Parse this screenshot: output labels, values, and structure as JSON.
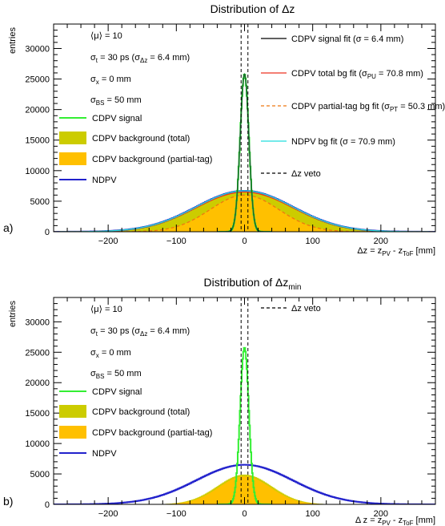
{
  "chart_data": [
    {
      "panel_label": "a)",
      "type": "area",
      "title": "Distribution of Δz",
      "title_main": "Distribution of ",
      "title_sym": "Δz",
      "title_sub": "",
      "xlabel": "Δz = z_PV - z_ToF [mm]",
      "xlabel_parts": {
        "pre": "Δz = z",
        "sub1": "PV",
        "mid": " - z",
        "sub2": "ToF",
        "post": " [mm]"
      },
      "ylabel": "entries",
      "xlim": [
        -280,
        280
      ],
      "ylim": [
        0,
        34000
      ],
      "xticks": [
        -200,
        -100,
        0,
        100,
        200
      ],
      "yticks": [
        5000,
        10000,
        15000,
        20000,
        25000,
        30000
      ],
      "veto": [
        -5,
        5
      ],
      "info": [
        {
          "text": "⟨μ⟩ = 10"
        },
        {
          "pre": "σ",
          "sub": "t",
          "post": " = 30 ps (σ",
          "sub2": "Δz",
          "post2": " =  6.4 mm)"
        },
        {
          "pre": "σ",
          "sub": "x",
          "post": " = 0 mm"
        },
        {
          "pre": "σ",
          "sub": "BS",
          "post": " =   50 mm"
        }
      ],
      "legend_left": [
        {
          "label": "CDPV signal",
          "color": "#33ee33",
          "kind": "line"
        },
        {
          "label": "CDPV background (total)",
          "color": "#cccc00",
          "kind": "fill"
        },
        {
          "label": "CDPV background (partial-tag)",
          "color": "#ffc000",
          "kind": "fill"
        },
        {
          "label": "NDPV",
          "color": "#2222cc",
          "kind": "line"
        }
      ],
      "legend_right": [
        {
          "pre": "CDPV signal fit (σ =  6.4 mm)",
          "color": "#000000",
          "dash": false
        },
        {
          "pre": "CDPV total bg fit (σ",
          "sub": "PU",
          "post": " = 70.8 mm)",
          "color": "#ee3322",
          "dash": false
        },
        {
          "pre": "CDPV partial-tag bg fit (σ",
          "sub": "PT",
          "post": " = 50.3 mm)",
          "color": "#ee7711",
          "dash": true
        },
        {
          "pre": "NDPV bg fit (σ = 70.9 mm)",
          "color": "#22dddd",
          "dash": false
        },
        {
          "pre": "Δz veto",
          "color": "#000000",
          "dash": true
        }
      ],
      "series": [
        {
          "name": "CDPV signal",
          "kind": "gauss",
          "amp": 25800,
          "mu": 0,
          "sigma": 6.4,
          "color": "#33ee33"
        },
        {
          "name": "CDPV background (total)",
          "kind": "gauss",
          "amp": 6500,
          "mu": 0,
          "sigma": 70.8,
          "color": "#cccc00"
        },
        {
          "name": "CDPV background (partial-tag)",
          "kind": "gauss",
          "amp": 6000,
          "mu": 0,
          "sigma": 50.3,
          "color": "#ffc000"
        },
        {
          "name": "NDPV",
          "kind": "gauss",
          "amp": 6700,
          "mu": 0,
          "sigma": 70.9,
          "color": "#2222cc"
        }
      ],
      "fits": [
        {
          "name": "CDPV signal fit",
          "amp": 25800,
          "mu": 0,
          "sigma": 6.4,
          "color": "#1a6b2e",
          "dash": false
        },
        {
          "name": "CDPV total bg fit",
          "amp": 6500,
          "mu": 0,
          "sigma": 70.8,
          "color": "#ee3322",
          "dash": false
        },
        {
          "name": "CDPV partial-tag bg fit",
          "amp": 6000,
          "mu": 0,
          "sigma": 50.3,
          "color": "#ee7711",
          "dash": true
        },
        {
          "name": "NDPV bg fit",
          "amp": 6700,
          "mu": 0,
          "sigma": 70.9,
          "color": "#22dddd",
          "dash": false
        }
      ]
    },
    {
      "panel_label": "b)",
      "type": "area",
      "title": "Distribution of Δz_min",
      "title_main": "Distribution of ",
      "title_sym": "Δz",
      "title_sub": "min",
      "xlabel": "Δ z = z_PV - z_ToF [mm]",
      "xlabel_parts": {
        "pre": "Δ z = z",
        "sub1": "PV",
        "mid": " - z",
        "sub2": "ToF",
        "post": " [mm]"
      },
      "ylabel": "entries",
      "xlim": [
        -280,
        280
      ],
      "ylim": [
        0,
        34000
      ],
      "xticks": [
        -200,
        -100,
        0,
        100,
        200
      ],
      "yticks": [
        5000,
        10000,
        15000,
        20000,
        25000,
        30000
      ],
      "veto": [
        -5,
        5
      ],
      "info": [
        {
          "text": "⟨μ⟩ = 10"
        },
        {
          "pre": "σ",
          "sub": "t",
          "post": " = 30 ps (σ",
          "sub2": "Δz",
          "post2": " =  6.4 mm)"
        },
        {
          "pre": "σ",
          "sub": "x",
          "post": " = 0 mm"
        },
        {
          "pre": "σ",
          "sub": "BS",
          "post": " =   50 mm"
        }
      ],
      "legend_left": [
        {
          "label": "CDPV signal",
          "color": "#33ee33",
          "kind": "line"
        },
        {
          "label": "CDPV background (total)",
          "color": "#cccc00",
          "kind": "fill"
        },
        {
          "label": "CDPV background (partial-tag)",
          "color": "#ffc000",
          "kind": "fill"
        },
        {
          "label": "NDPV",
          "color": "#2222cc",
          "kind": "line"
        }
      ],
      "legend_right": [
        {
          "pre": "Δz veto",
          "color": "#000000",
          "dash": true
        }
      ],
      "series": [
        {
          "name": "CDPV signal",
          "kind": "gauss",
          "amp": 25800,
          "mu": 0,
          "sigma": 6.4,
          "color": "#33ee33"
        },
        {
          "name": "CDPV background (total)",
          "kind": "gauss",
          "amp": 4900,
          "mu": 0,
          "sigma": 40,
          "color": "#cccc00"
        },
        {
          "name": "CDPV background (partial-tag)",
          "kind": "gauss",
          "amp": 4600,
          "mu": 0,
          "sigma": 38,
          "color": "#ffc000"
        },
        {
          "name": "NDPV",
          "kind": "gauss",
          "amp": 6500,
          "mu": 0,
          "sigma": 70.9,
          "color": "#2222cc"
        }
      ],
      "fits": []
    }
  ]
}
